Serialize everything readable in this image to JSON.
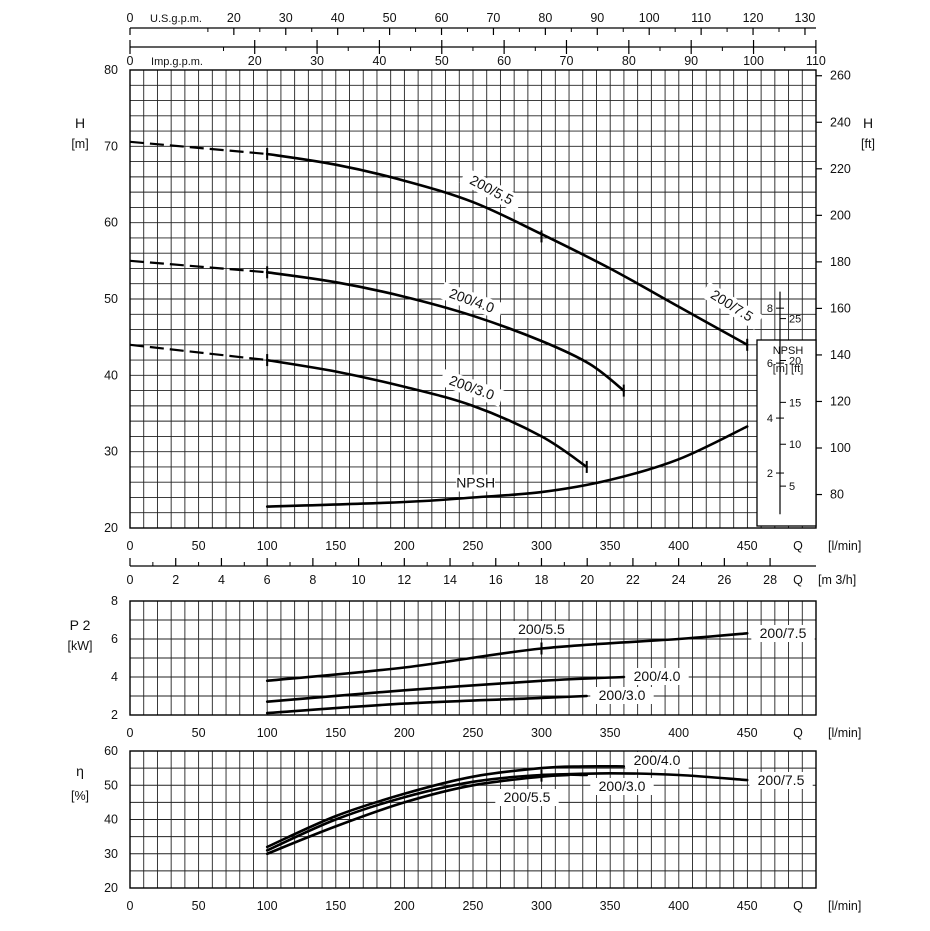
{
  "chart_data": {
    "type": "line",
    "top_axes": {
      "us_gpm": {
        "label": "U.S.g.p.m.",
        "ticks": [
          "0",
          "20",
          "30",
          "40",
          "50",
          "60",
          "70",
          "80",
          "90",
          "100",
          "110",
          "120",
          "130"
        ],
        "values": [
          0,
          20,
          30,
          40,
          50,
          60,
          70,
          80,
          90,
          100,
          110,
          120,
          130
        ]
      },
      "imp_gpm": {
        "label": "Imp.g.p.m.",
        "ticks": [
          "0",
          "20",
          "30",
          "40",
          "50",
          "60",
          "70",
          "80",
          "90",
          "100",
          "110"
        ],
        "values": [
          0,
          20,
          30,
          40,
          50,
          60,
          70,
          80,
          90,
          100,
          110
        ]
      }
    },
    "head_chart": {
      "ylabel": "H",
      "yunit": "[m]",
      "ylabel_right": "H",
      "yunit_right": "[ft]",
      "ylim": [
        20,
        80
      ],
      "yticks": [
        "20",
        "30",
        "40",
        "50",
        "60",
        "70",
        "80"
      ],
      "yticks_right": [
        "80",
        "100",
        "120",
        "140",
        "160",
        "180",
        "200",
        "220",
        "240",
        "260"
      ],
      "xlabel": "Q",
      "xunit": "[l/min]",
      "xlim": [
        0,
        500
      ],
      "xticks": [
        "0",
        "50",
        "100",
        "150",
        "200",
        "250",
        "300",
        "350",
        "400",
        "450"
      ],
      "m3h_axis": {
        "label": "Q",
        "unit": "[m 3/h]",
        "ticks": [
          "0",
          "2",
          "4",
          "6",
          "8",
          "10",
          "12",
          "14",
          "16",
          "18",
          "20",
          "22",
          "24",
          "26",
          "28"
        ]
      },
      "series": [
        {
          "name": "200/5.5",
          "dashed": [
            [
              0,
              70.6
            ],
            [
              100,
              69
            ]
          ],
          "values": [
            [
              100,
              69
            ],
            [
              150,
              67.6
            ],
            [
              200,
              65.5
            ],
            [
              250,
              62.7
            ],
            [
              300,
              58.5
            ],
            [
              350,
              54
            ],
            [
              400,
              49
            ],
            [
              450,
              44
            ]
          ]
        },
        {
          "name": "200/7.5",
          "values": [
            [
              450,
              44
            ]
          ]
        },
        {
          "name": "200/4.0",
          "dashed": [
            [
              0,
              55
            ],
            [
              100,
              53.5
            ]
          ],
          "values": [
            [
              100,
              53.5
            ],
            [
              150,
              52.2
            ],
            [
              200,
              50.3
            ],
            [
              250,
              47.8
            ],
            [
              300,
              44.5
            ],
            [
              335,
              41.5
            ],
            [
              360,
              38
            ]
          ]
        },
        {
          "name": "200/3.0",
          "dashed": [
            [
              0,
              44
            ],
            [
              100,
              42
            ]
          ],
          "values": [
            [
              100,
              42
            ],
            [
              150,
              40.5
            ],
            [
              200,
              38.5
            ],
            [
              250,
              36
            ],
            [
              300,
              32
            ],
            [
              333,
              28
            ]
          ]
        },
        {
          "name": "NPSH",
          "values": [
            [
              100,
              22.8
            ],
            [
              200,
              23.4
            ],
            [
              250,
              24
            ],
            [
              300,
              24.7
            ],
            [
              350,
              26.3
            ],
            [
              400,
              29
            ],
            [
              450,
              33.3
            ]
          ]
        }
      ],
      "npsh_inset": {
        "title": "NPSH",
        "units": "[m] [ft]",
        "m_ticks": [
          "2",
          "4",
          "6",
          "8"
        ],
        "ft_ticks": [
          "5",
          "10",
          "15",
          "20",
          "25"
        ]
      }
    },
    "power_chart": {
      "ylabel": "P 2",
      "yunit": "[kW]",
      "ylim": [
        2,
        8
      ],
      "yticks": [
        "2",
        "4",
        "6",
        "8"
      ],
      "xlabel": "Q",
      "xunit": "[l/min]",
      "xticks": [
        "0",
        "50",
        "100",
        "150",
        "200",
        "250",
        "300",
        "350",
        "400",
        "450"
      ],
      "series": [
        {
          "name": "200/5.5",
          "values": [
            [
              100,
              3.8
            ],
            [
              200,
              4.5
            ],
            [
              300,
              5.5
            ]
          ]
        },
        {
          "name": "200/7.5",
          "values": [
            [
              300,
              5.5
            ],
            [
              400,
              6
            ],
            [
              450,
              6.3
            ]
          ]
        },
        {
          "name": "200/4.0",
          "values": [
            [
              100,
              2.7
            ],
            [
              200,
              3.3
            ],
            [
              300,
              3.8
            ],
            [
              360,
              4
            ]
          ]
        },
        {
          "name": "200/3.0",
          "values": [
            [
              100,
              2.1
            ],
            [
              200,
              2.6
            ],
            [
              300,
              2.9
            ],
            [
              333,
              3
            ]
          ]
        }
      ]
    },
    "efficiency_chart": {
      "ylabel": "η",
      "yunit": "[%]",
      "ylim": [
        20,
        60
      ],
      "yticks": [
        "20",
        "30",
        "40",
        "50",
        "60"
      ],
      "xlabel": "Q",
      "xunit": "[l/min]",
      "xticks": [
        "0",
        "50",
        "100",
        "150",
        "200",
        "250",
        "300",
        "350",
        "400",
        "450"
      ],
      "series": [
        {
          "name": "200/4.0",
          "values": [
            [
              100,
              32
            ],
            [
              150,
              41
            ],
            [
              200,
              47.5
            ],
            [
              250,
              52.5
            ],
            [
              300,
              55
            ],
            [
              330,
              55.5
            ],
            [
              360,
              55.5
            ]
          ]
        },
        {
          "name": "200/5.5",
          "values": [
            [
              100,
              30
            ],
            [
              150,
              38
            ],
            [
              200,
              45
            ],
            [
              250,
              50
            ],
            [
              300,
              52.5
            ],
            [
              320,
              53
            ]
          ]
        },
        {
          "name": "200/7.5",
          "values": [
            [
              300,
              53
            ],
            [
              350,
              53.5
            ],
            [
              400,
              53
            ],
            [
              450,
              51.5
            ]
          ]
        },
        {
          "name": "200/3.0",
          "values": [
            [
              100,
              31
            ],
            [
              150,
              40
            ],
            [
              200,
              46.5
            ],
            [
              250,
              51
            ],
            [
              300,
              53
            ],
            [
              333,
              53
            ]
          ]
        }
      ]
    }
  }
}
